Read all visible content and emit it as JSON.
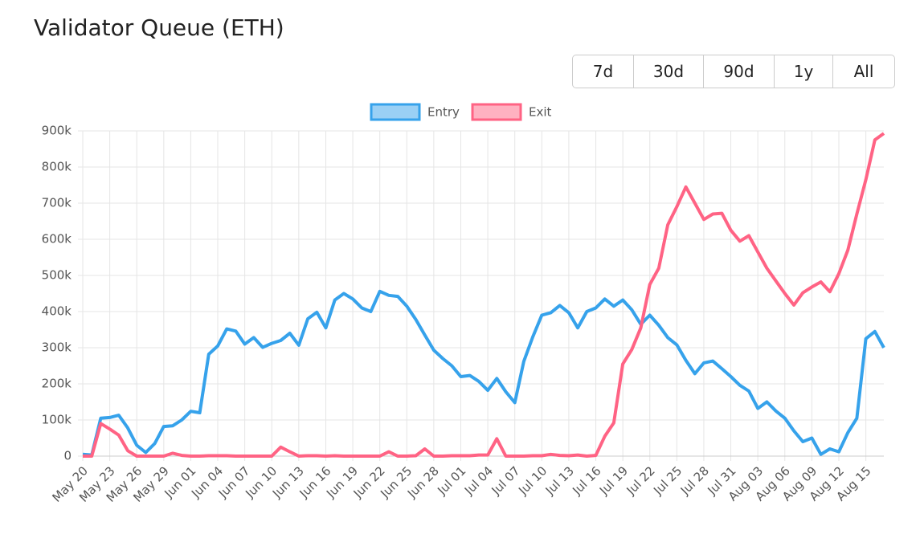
{
  "chart_data": {
    "type": "line",
    "title": "Validator Queue (ETH)",
    "categories": [
      "May 20",
      null,
      null,
      "May 23",
      null,
      null,
      "May 26",
      null,
      null,
      "May 29",
      null,
      null,
      "Jun 01",
      null,
      null,
      "Jun 04",
      null,
      null,
      "Jun 07",
      null,
      null,
      "Jun 10",
      null,
      null,
      "Jun 13",
      null,
      null,
      "Jun 16",
      null,
      null,
      "Jun 19",
      null,
      null,
      "Jun 22",
      null,
      null,
      "Jun 25",
      null,
      null,
      "Jun 28",
      null,
      null,
      "Jul 01",
      null,
      null,
      "Jul 04",
      null,
      null,
      "Jul 07",
      null,
      null,
      "Jul 10",
      null,
      null,
      "Jul 13",
      null,
      null,
      "Jul 16",
      null,
      null,
      "Jul 19",
      null,
      null,
      "Jul 22",
      null,
      null,
      "Jul 25",
      null,
      null,
      "Jul 28",
      null,
      null,
      "Jul 31",
      null,
      null,
      "Aug 03",
      null,
      null,
      "Aug 06",
      null,
      null,
      "Aug 09",
      null,
      null,
      "Aug 12",
      null,
      null,
      "Aug 15",
      null,
      null
    ],
    "series": [
      {
        "name": "Entry",
        "color": "#36a2eb",
        "fill": "#9ad0f5",
        "values": [
          5000,
          3000,
          105000,
          107000,
          113000,
          78000,
          30000,
          10000,
          35000,
          82000,
          84000,
          100000,
          124000,
          120000,
          282000,
          305000,
          352000,
          346000,
          310000,
          328000,
          301000,
          312000,
          320000,
          340000,
          307000,
          380000,
          398000,
          355000,
          432000,
          450000,
          435000,
          410000,
          400000,
          456000,
          445000,
          442000,
          415000,
          378000,
          335000,
          293000,
          270000,
          250000,
          220000,
          223000,
          207000,
          182000,
          215000,
          178000,
          148000,
          262000,
          330000,
          390000,
          397000,
          417000,
          397000,
          355000,
          400000,
          410000,
          435000,
          415000,
          432000,
          405000,
          365000,
          390000,
          362000,
          328000,
          308000,
          265000,
          228000,
          258000,
          263000,
          242000,
          220000,
          196000,
          180000,
          132000,
          150000,
          125000,
          105000,
          70000,
          40000,
          50000,
          5000,
          20000,
          12000,
          65000,
          105000,
          325000,
          345000,
          300000
        ]
      },
      {
        "name": "Exit",
        "color": "#ff6384",
        "fill": "#ffb1c1",
        "values": [
          0,
          0,
          90000,
          75000,
          58000,
          15000,
          0,
          0,
          0,
          0,
          8000,
          2000,
          0,
          0,
          1000,
          1000,
          1000,
          0,
          0,
          0,
          0,
          0,
          25000,
          12000,
          0,
          1000,
          1000,
          0,
          1000,
          0,
          0,
          0,
          0,
          0,
          12000,
          0,
          0,
          1000,
          20000,
          0,
          0,
          1000,
          1000,
          1000,
          3000,
          3000,
          48000,
          0,
          0,
          0,
          1000,
          1000,
          5000,
          2000,
          1000,
          3000,
          0,
          2000,
          55000,
          92000,
          255000,
          295000,
          355000,
          475000,
          520000,
          640000,
          690000,
          745000,
          700000,
          655000,
          670000,
          672000,
          625000,
          595000,
          610000,
          565000,
          520000,
          485000,
          450000,
          418000,
          452000,
          468000,
          482000,
          455000,
          505000,
          570000,
          670000,
          765000,
          875000,
          893000
        ]
      }
    ],
    "ylim": [
      0,
      900000
    ],
    "yticks": [
      0,
      {
        "value": 100000,
        "label": "100k"
      },
      {
        "value": 200000,
        "label": "200k"
      },
      {
        "value": 300000,
        "label": "300k"
      },
      {
        "value": 400000,
        "label": "400k"
      },
      {
        "value": 500000,
        "label": "500k"
      },
      {
        "value": 600000,
        "label": "600k"
      },
      {
        "value": 700000,
        "label": "700k"
      },
      {
        "value": 800000,
        "label": "800k"
      },
      {
        "value": 900000,
        "label": "900k"
      }
    ],
    "grid": true,
    "legend": "top"
  },
  "range_buttons": [
    "7d",
    "30d",
    "90d",
    "1y",
    "All"
  ]
}
